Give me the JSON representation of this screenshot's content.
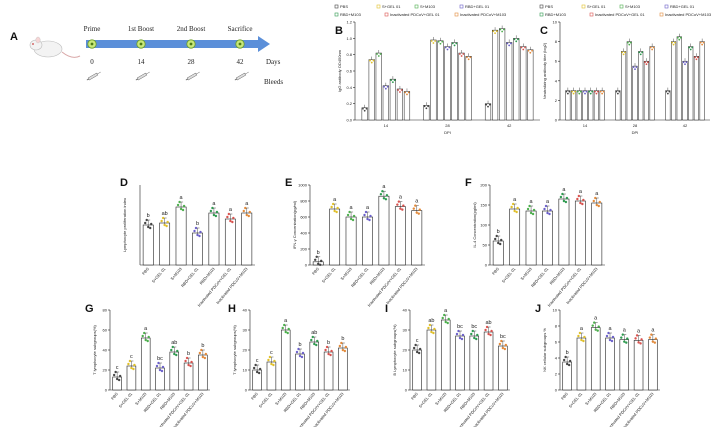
{
  "panels": {
    "A": {
      "label": "A",
      "events": [
        {
          "name": "Prime",
          "day": "0"
        },
        {
          "name": "1st Boost",
          "day": "14"
        },
        {
          "name": "2nd Boost",
          "day": "28"
        },
        {
          "name": "Sacrifice",
          "day": "42"
        }
      ],
      "days_label": "Days",
      "bleeds_label": "Bleeds"
    }
  },
  "colors": {
    "PBS": "#444444",
    "S+GEL 01": "#e0c02a",
    "S+M103": "#4cae4c",
    "RBD+GEL 01": "#6a5fc9",
    "RBD+M103": "#2d9a4f",
    "Inactivated PDCoV+GEL 01": "#d9534f",
    "Inactivated PDCoV+M103": "#e38a3a"
  },
  "chart_data": [
    {
      "id": "B",
      "label": "B",
      "type": "bar",
      "ylabel": "IgG antibody OD450nm",
      "xlabel": "DPI",
      "legend": [
        "PBS",
        "S+GEL 01",
        "S+M103",
        "RBD+GEL 01",
        "RBD+M103",
        "Inactivated PDCoV+GEL 01",
        "Inactivated PDCoV+M103"
      ],
      "categories": [
        "14",
        "28",
        "42"
      ],
      "ylim": [
        0,
        1.2
      ],
      "yticks": [
        "0.0",
        "0.2",
        "0.4",
        "0.6",
        "0.8",
        "1.0",
        "1.2"
      ],
      "series": [
        {
          "name": "PBS",
          "values": [
            0.15,
            0.18,
            0.2
          ]
        },
        {
          "name": "S+GEL 01",
          "values": [
            0.74,
            0.98,
            1.1
          ]
        },
        {
          "name": "S+M103",
          "values": [
            0.82,
            0.97,
            1.12
          ]
        },
        {
          "name": "RBD+GEL 01",
          "values": [
            0.42,
            0.9,
            0.95
          ]
        },
        {
          "name": "RBD+M103",
          "values": [
            0.5,
            0.95,
            1.0
          ]
        },
        {
          "name": "Inactivated PDCoV+GEL 01",
          "values": [
            0.38,
            0.82,
            0.9
          ]
        },
        {
          "name": "Inactivated PDCoV+M103",
          "values": [
            0.35,
            0.78,
            0.86
          ]
        }
      ]
    },
    {
      "id": "C",
      "label": "C",
      "type": "bar",
      "ylabel": "Neutralizing antibody titer (log2)",
      "xlabel": "DPI",
      "legend": [
        "PBS",
        "S+GEL 01",
        "S+M103",
        "RBD+GEL 01",
        "RBD+M103",
        "Inactivated PDCoV+GEL 01",
        "Inactivated PDCoV+M103"
      ],
      "categories": [
        "14",
        "28",
        "42"
      ],
      "ylim": [
        0,
        10
      ],
      "yticks": [
        "0",
        "2",
        "4",
        "6",
        "8",
        "10"
      ],
      "series": [
        {
          "name": "PBS",
          "values": [
            3,
            3,
            3
          ]
        },
        {
          "name": "S+GEL 01",
          "values": [
            3,
            7,
            8
          ]
        },
        {
          "name": "S+M103",
          "values": [
            3,
            8,
            8.5
          ]
        },
        {
          "name": "RBD+GEL 01",
          "values": [
            3,
            5.5,
            6
          ]
        },
        {
          "name": "RBD+M103",
          "values": [
            3,
            7,
            7.5
          ]
        },
        {
          "name": "Inactivated PDCoV+GEL 01",
          "values": [
            3,
            6,
            6.5
          ]
        },
        {
          "name": "Inactivated PDCoV+M103",
          "values": [
            3,
            7.5,
            8
          ]
        }
      ]
    },
    {
      "id": "D",
      "label": "D",
      "type": "bar",
      "ylabel": "Lymphocyte proliferation index",
      "categories": [
        "PBS",
        "S+GEL 01",
        "S+M103",
        "RBD+GEL 01",
        "RBD+M103",
        "Inactivated PDCoV+GEL 01",
        "Inactivated PDCoV+M103"
      ],
      "ylim": [
        0,
        2.0
      ],
      "yticks": [],
      "values": [
        1.0,
        1.05,
        1.45,
        0.8,
        1.3,
        1.15,
        1.3
      ],
      "letters": [
        "b",
        "ab",
        "a",
        "b",
        "a",
        "a",
        "a"
      ]
    },
    {
      "id": "E",
      "label": "E",
      "type": "bar",
      "ylabel": "IFN-γ Concentration(pg/ml)",
      "categories": [
        "PBS",
        "S+GEL 01",
        "S+M103",
        "RBD+GEL 01",
        "RBD+M103",
        "Inactivated PDCoV+GEL 01",
        "Inactivated PDCoV+M103"
      ],
      "ylim": [
        0,
        1000
      ],
      "yticks": [
        "0",
        "200",
        "400",
        "600",
        "800",
        "1000"
      ],
      "values": [
        40,
        700,
        600,
        600,
        860,
        730,
        680
      ],
      "letters": [
        "b",
        "a",
        "a",
        "a",
        "a",
        "a",
        "a"
      ]
    },
    {
      "id": "F",
      "label": "F",
      "type": "bar",
      "ylabel": "IL-4 Concentration(pg/ml)",
      "categories": [
        "PBS",
        "S+GEL 01",
        "S+M103",
        "RBD+GEL 01",
        "RBD+M103",
        "Inactivated PDCoV+GEL 01",
        "Inactivated PDCoV+M103"
      ],
      "ylim": [
        0,
        200
      ],
      "yticks": [
        "0",
        "50",
        "100",
        "150",
        "200"
      ],
      "values": [
        60,
        140,
        135,
        135,
        165,
        160,
        155
      ],
      "letters": [
        "b",
        "a",
        "a",
        "a",
        "a",
        "a",
        "a"
      ]
    },
    {
      "id": "G",
      "label": "G",
      "type": "bar",
      "ylabel": "T lymphocyte subgroups(%)",
      "categories": [
        "PBS",
        "S+GEL 01",
        "S+M103",
        "RBD+GEL 01",
        "RBD+M103",
        "Inactivated PDCoV+GEL 01",
        "Inactivated PDCoV+M103"
      ],
      "ylim": [
        0,
        80
      ],
      "yticks": [
        "0",
        "20",
        "40",
        "60",
        "80"
      ],
      "values": [
        13,
        24,
        52,
        22,
        38,
        27,
        35
      ],
      "letters": [
        "c",
        "c",
        "a",
        "bc",
        "ab",
        "b",
        "b"
      ]
    },
    {
      "id": "H",
      "label": "H",
      "type": "bar",
      "ylabel": "T lymphocyte subgroups(%)",
      "categories": [
        "PBS",
        "S+GEL 01",
        "S+M103",
        "RBD+GEL 01",
        "RBD+M103",
        "Inactivated PDCoV+GEL 01",
        "Inactivated PDCoV+M103"
      ],
      "ylim": [
        0,
        40
      ],
      "yticks": [
        "0",
        "10",
        "20",
        "30",
        "40"
      ],
      "values": [
        10,
        14,
        30,
        18,
        24,
        19,
        21
      ],
      "letters": [
        "c",
        "c",
        "a",
        "b",
        "ab",
        "b",
        "b"
      ]
    },
    {
      "id": "I",
      "label": "I",
      "type": "bar",
      "ylabel": "B Lymphocyte subgroups(%)",
      "categories": [
        "PBS",
        "S+GEL 01",
        "S+M103",
        "RBD+GEL 01",
        "RBD+M103",
        "Inactivated PDCoV+GEL 01",
        "Inactivated PDCoV+M103"
      ],
      "ylim": [
        0,
        40
      ],
      "yticks": [
        "0",
        "10",
        "20",
        "30",
        "40"
      ],
      "values": [
        20,
        30,
        35,
        27,
        27,
        29,
        22
      ],
      "letters": [
        "c",
        "ab",
        "a",
        "bc",
        "bc",
        "ab",
        "bc"
      ]
    },
    {
      "id": "J",
      "label": "J",
      "type": "bar",
      "ylabel": "NK cellular subgroups %",
      "categories": [
        "PBS",
        "S+GEL 01",
        "S+M103",
        "RBD+GEL 01",
        "RBD+M103",
        "Inactivated PDCoV+GEL 01",
        "Inactivated PDCoV+M103"
      ],
      "ylim": [
        0,
        10
      ],
      "yticks": [
        "0",
        "2",
        "4",
        "6",
        "8",
        "10"
      ],
      "values": [
        3.5,
        6.5,
        7.8,
        6.5,
        6.3,
        6.2,
        6.3
      ],
      "letters": [
        "b",
        "a",
        "a",
        "a",
        "a",
        "a",
        "a"
      ]
    }
  ]
}
